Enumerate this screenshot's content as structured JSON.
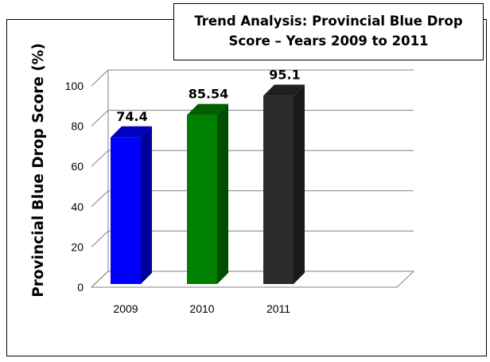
{
  "chart_data": {
    "type": "bar",
    "title": "Trend Analysis: Provincial Blue Drop Score – Years 2009 to 2011",
    "ylabel": "Provincial Blue Drop Score (%)",
    "xlabel": "",
    "categories": [
      "2009",
      "2010",
      "2011"
    ],
    "values": [
      74.4,
      85.54,
      95.1
    ],
    "value_labels": [
      "74.4",
      "85.54",
      "95.1"
    ],
    "colors": [
      "#0000ff",
      "#008000",
      "#2b2b2b"
    ],
    "ylim": [
      0,
      100
    ],
    "yticks": [
      "0",
      "20",
      "40",
      "60",
      "80",
      "100"
    ],
    "grid": true,
    "style": "3d-column"
  }
}
